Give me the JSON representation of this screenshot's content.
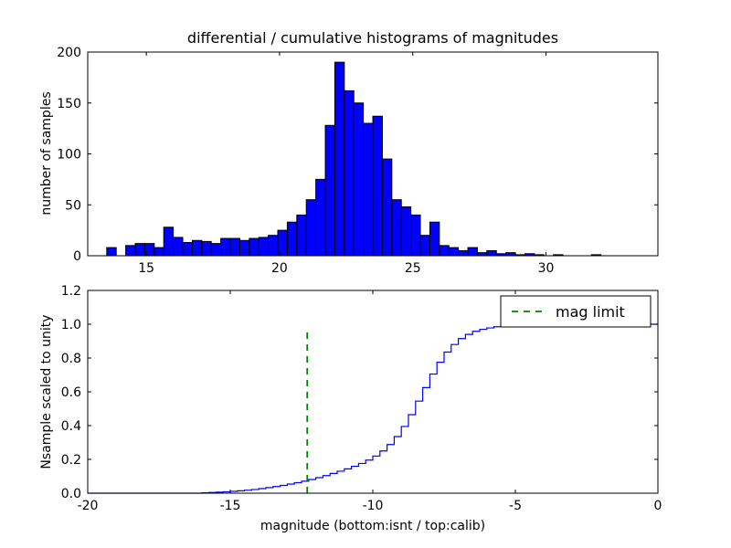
{
  "figure": {
    "title": "differential / cumulative histograms of magnitudes",
    "background": "#ffffff"
  },
  "colors": {
    "bar_fill": "#0000ff",
    "bar_edge": "#000000",
    "step_line": "#0000ff",
    "mag_limit": "#008000",
    "axis": "#000000"
  },
  "chart_data": [
    {
      "type": "bar",
      "role": "differential-histogram",
      "ylabel": "number of samples",
      "xlim": [
        12.8,
        34.2
      ],
      "ylim": [
        0,
        200
      ],
      "xticks": [
        15,
        20,
        25,
        30
      ],
      "yticks": [
        0,
        50,
        100,
        150,
        200
      ],
      "grid": false,
      "bin_start": 12.8,
      "bin_width": 0.3567,
      "counts": [
        0,
        0,
        8,
        0,
        10,
        12,
        12,
        8,
        28,
        18,
        13,
        15,
        14,
        12,
        17,
        17,
        15,
        17,
        18,
        20,
        25,
        33,
        40,
        55,
        75,
        128,
        190,
        162,
        150,
        130,
        137,
        95,
        55,
        48,
        40,
        20,
        33,
        10,
        8,
        5,
        8,
        3,
        5,
        2,
        3,
        1,
        2,
        1,
        0,
        1,
        0,
        0,
        0,
        1,
        0,
        0,
        0,
        0,
        0,
        0
      ]
    },
    {
      "type": "line",
      "style": "step",
      "role": "cumulative-histogram",
      "ylabel": "Nsample scaled to unity",
      "xlabel": "magnitude (bottom:isnt / top:calib)",
      "xlim": [
        -20,
        0
      ],
      "ylim": [
        0,
        1.2
      ],
      "xticks": [
        -20,
        -15,
        -10,
        -5,
        0
      ],
      "yticks": [
        0,
        0.2,
        0.4,
        0.6,
        0.8,
        1.0,
        1.2
      ],
      "ytick_labels": [
        "0.0",
        "0.2",
        "0.4",
        "0.6",
        "0.8",
        "1.0",
        "1.2"
      ],
      "grid": false,
      "x": [
        -20,
        -16.0,
        -15.75,
        -15.5,
        -15.25,
        -15.0,
        -14.75,
        -14.5,
        -14.25,
        -14.0,
        -13.75,
        -13.5,
        -13.25,
        -13.0,
        -12.75,
        -12.5,
        -12.25,
        -12.0,
        -11.75,
        -11.5,
        -11.25,
        -11.0,
        -10.75,
        -10.5,
        -10.25,
        -10.0,
        -9.75,
        -9.5,
        -9.25,
        -9.0,
        -8.75,
        -8.5,
        -8.25,
        -8.0,
        -7.75,
        -7.5,
        -7.25,
        -7.0,
        -6.75,
        -6.5,
        -6.25,
        -6.0,
        -5.75,
        -5.5,
        -5.25,
        -5.0,
        -4.75,
        -4.5,
        -4.25,
        -4.0,
        0
      ],
      "y": [
        0,
        0.002,
        0.004,
        0.006,
        0.008,
        0.011,
        0.014,
        0.018,
        0.022,
        0.027,
        0.033,
        0.039,
        0.046,
        0.054,
        0.062,
        0.071,
        0.081,
        0.092,
        0.104,
        0.117,
        0.13,
        0.144,
        0.159,
        0.176,
        0.196,
        0.22,
        0.25,
        0.288,
        0.335,
        0.395,
        0.465,
        0.545,
        0.625,
        0.705,
        0.775,
        0.835,
        0.88,
        0.915,
        0.94,
        0.958,
        0.97,
        0.978,
        0.985,
        0.989,
        0.993,
        0.995,
        0.997,
        0.998,
        0.999,
        1.0,
        1.0
      ],
      "mag_limit": {
        "x": -12.3,
        "y0": 0,
        "y1": 0.96,
        "label": "mag limit",
        "linestyle": "dashed",
        "color": "#008000"
      },
      "legend": {
        "position": "upper right",
        "entries": [
          {
            "label": "mag limit",
            "color": "#008000",
            "linestyle": "dashed"
          }
        ]
      }
    }
  ]
}
